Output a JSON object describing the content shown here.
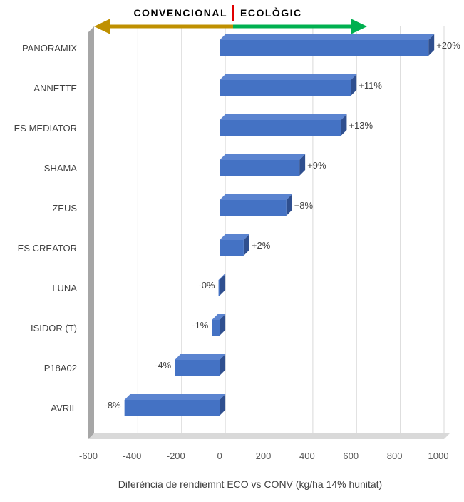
{
  "chart_data": {
    "type": "bar",
    "orientation": "horizontal",
    "categories": [
      "PANORAMIX",
      "ANNETTE",
      "ES MEDIATOR",
      "SHAMA",
      "ZEUS",
      "ES CREATOR",
      "LUNA",
      "ISIDOR (T)",
      "P18A02",
      "AVRIL"
    ],
    "values": [
      955,
      600,
      555,
      365,
      305,
      110,
      -5,
      -35,
      -205,
      -435
    ],
    "data_labels": [
      "+20%",
      "+11%",
      "+13%",
      "+9%",
      "+8%",
      "+2%",
      "-0%",
      "-1%",
      "-4%",
      "-8%"
    ],
    "xlabel": "Diferència de rendiemnt ECO vs CONV (kg/ha 14% hunitat)",
    "xlim": [
      -600,
      1000
    ],
    "xticks": [
      -600,
      -400,
      -200,
      0,
      200,
      400,
      600,
      800,
      1000
    ],
    "grid": true,
    "bar_color": "#4472c4",
    "header": {
      "left_label": "CONVENCIONAL",
      "right_label": "ECOLÒGIC",
      "left_color": "#bf9000",
      "right_color": "#00b050",
      "divider_color": "#e00000"
    }
  }
}
